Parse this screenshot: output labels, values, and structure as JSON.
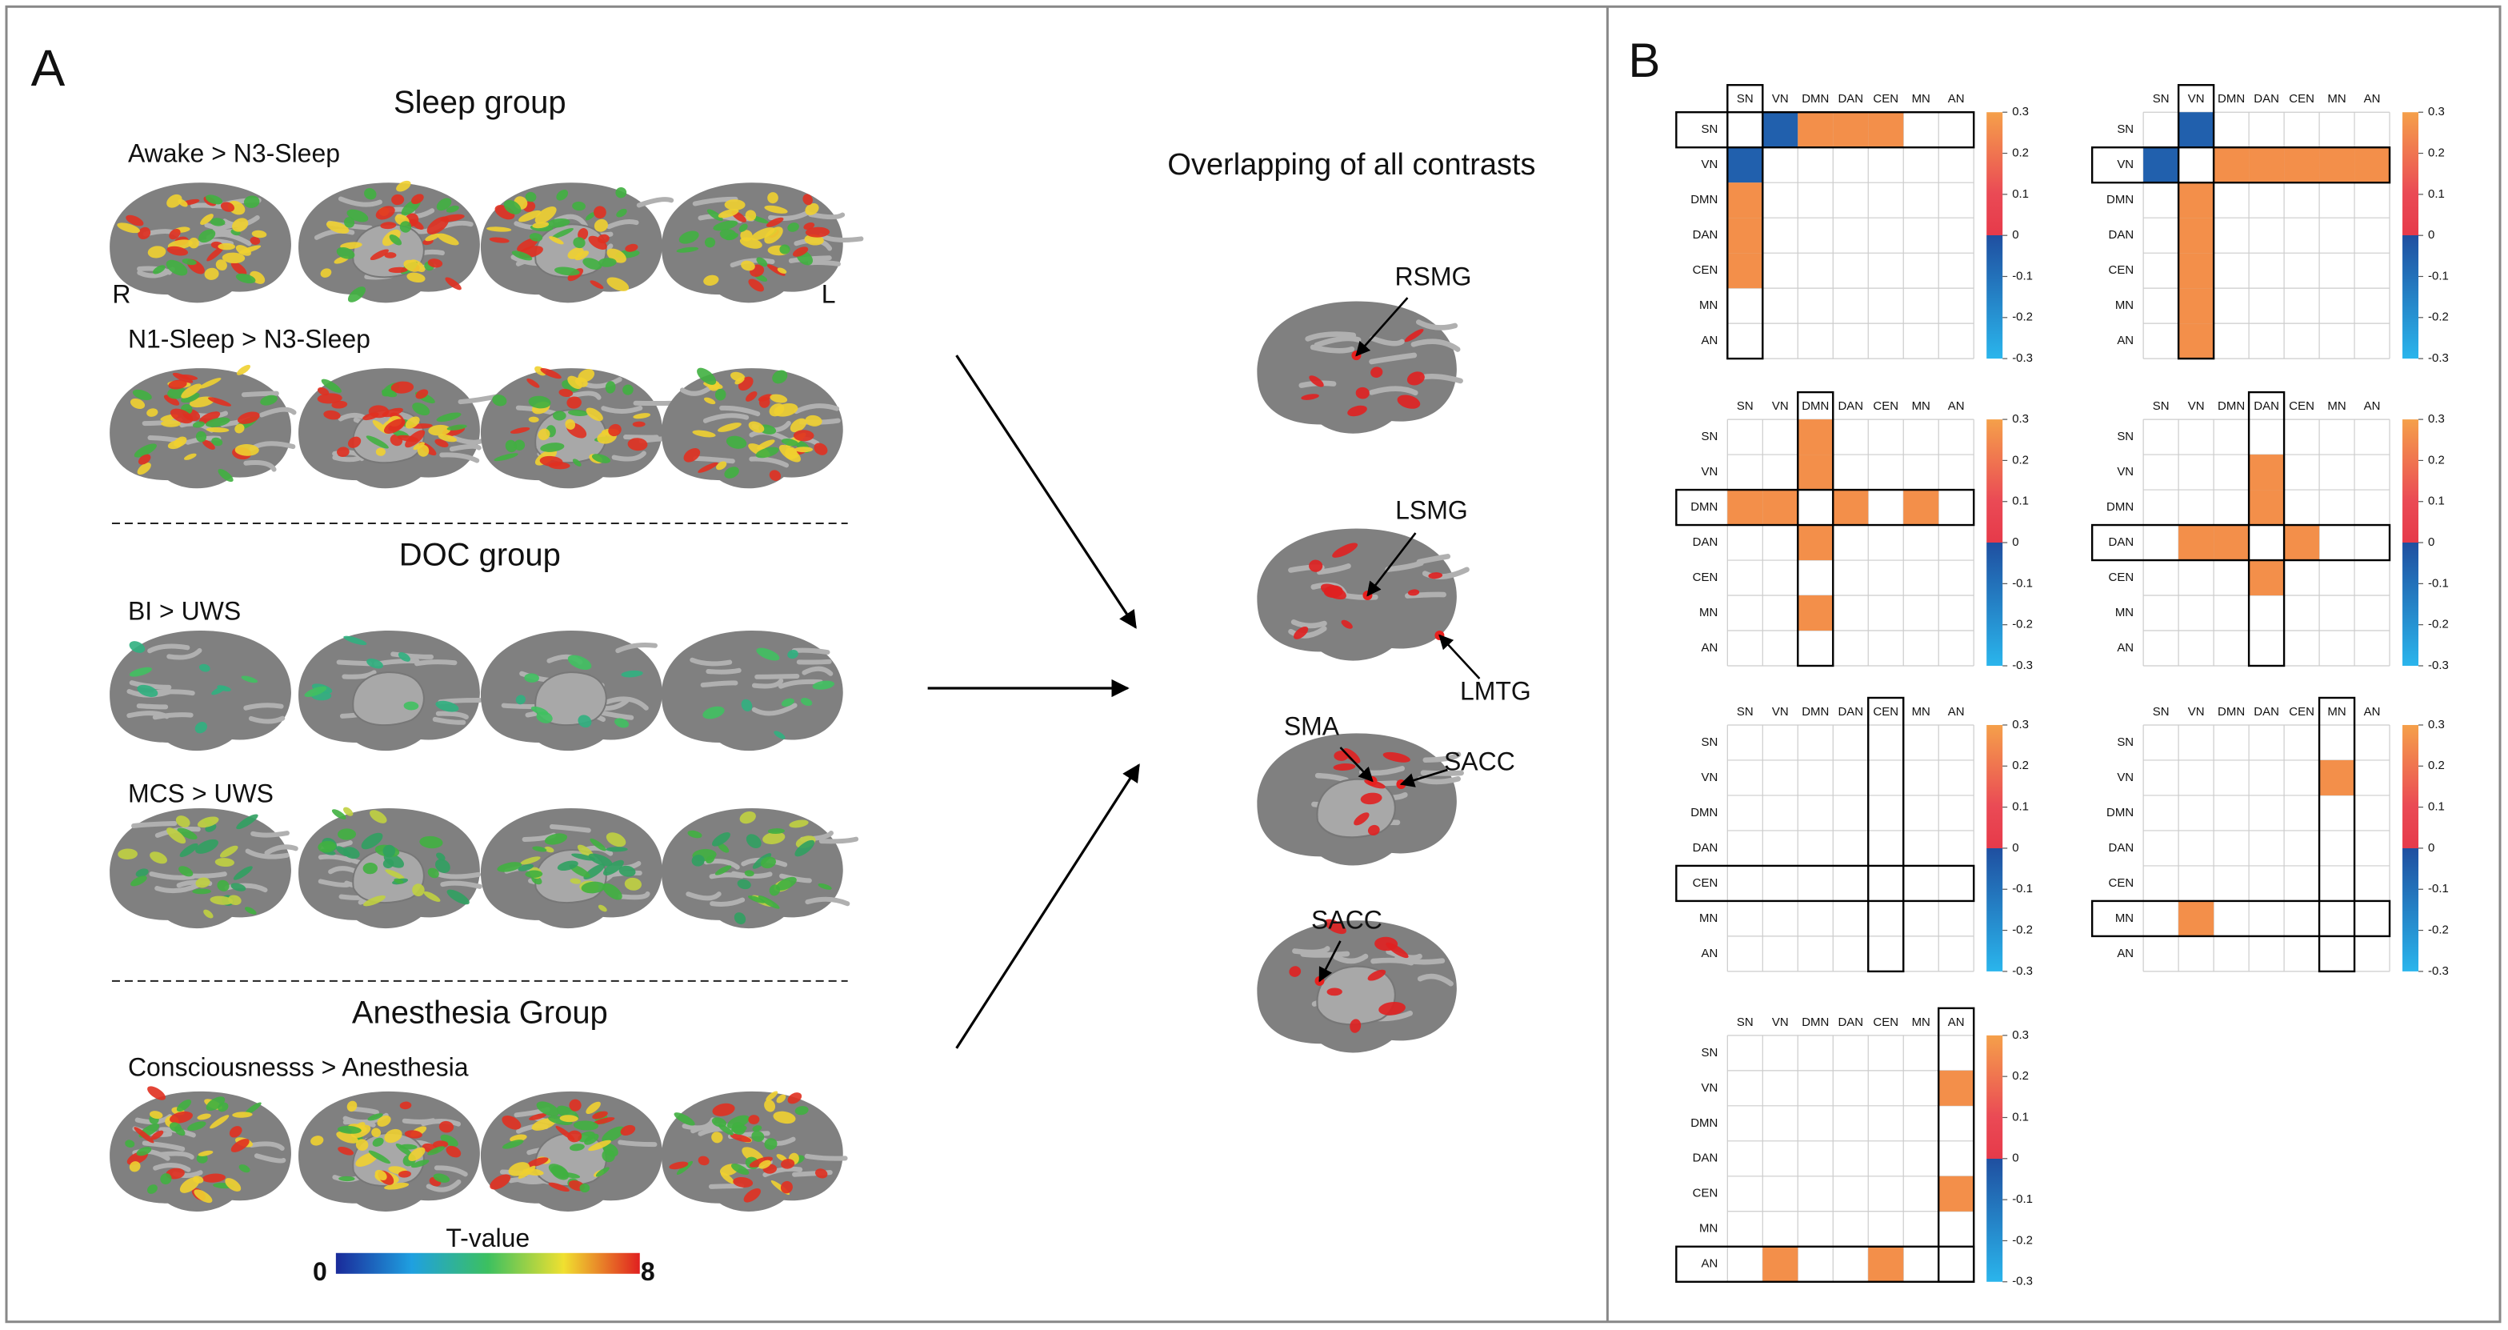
{
  "panel_a": {
    "label": "A",
    "groups": [
      {
        "title": "Sleep group",
        "contrasts": [
          "Awake > N3-Sleep",
          "N1-Sleep > N3-Sleep"
        ]
      },
      {
        "title": "DOC group",
        "contrasts": [
          "BI > UWS",
          "MCS > UWS"
        ]
      },
      {
        "title": "Anesthesia Group",
        "contrasts": [
          "Consciousnesss > Anesthesia"
        ]
      }
    ],
    "hemisphere_labels": [
      "R",
      "L"
    ],
    "colorbar": {
      "title": "T-value",
      "range": [
        0,
        8
      ]
    },
    "overlap_title": "Overlapping of all contrasts",
    "regions": [
      "RSMG",
      "LSMG",
      "LMTG",
      "SMA",
      "SACC",
      "SACC"
    ]
  },
  "panel_b": {
    "label": "B",
    "networks": [
      "SN",
      "VN",
      "DMN",
      "DAN",
      "CEN",
      "MN",
      "AN"
    ],
    "colorbar_ticks": [
      0.3,
      0.2,
      0.1,
      0,
      -0.1,
      -0.2,
      -0.3
    ],
    "matrices": [
      {
        "values": [
          null,
          -0.05,
          0.25,
          0.25,
          0.25,
          null,
          null
        ]
      },
      {
        "values": [
          -0.05,
          null,
          0.25,
          0.25,
          0.25,
          0.25,
          0.25
        ]
      },
      {
        "values": [
          0.25,
          0.25,
          null,
          0.25,
          null,
          0.25,
          null
        ]
      },
      {
        "values": [
          null,
          0.25,
          0.25,
          null,
          0.25,
          null,
          null
        ]
      },
      {
        "values": [
          null,
          null,
          null,
          null,
          null,
          null,
          null
        ]
      },
      {
        "values": [
          null,
          0.25,
          null,
          null,
          null,
          null,
          null
        ]
      },
      {
        "values": [
          null,
          0.25,
          null,
          null,
          0.25,
          null,
          null
        ]
      }
    ]
  }
}
